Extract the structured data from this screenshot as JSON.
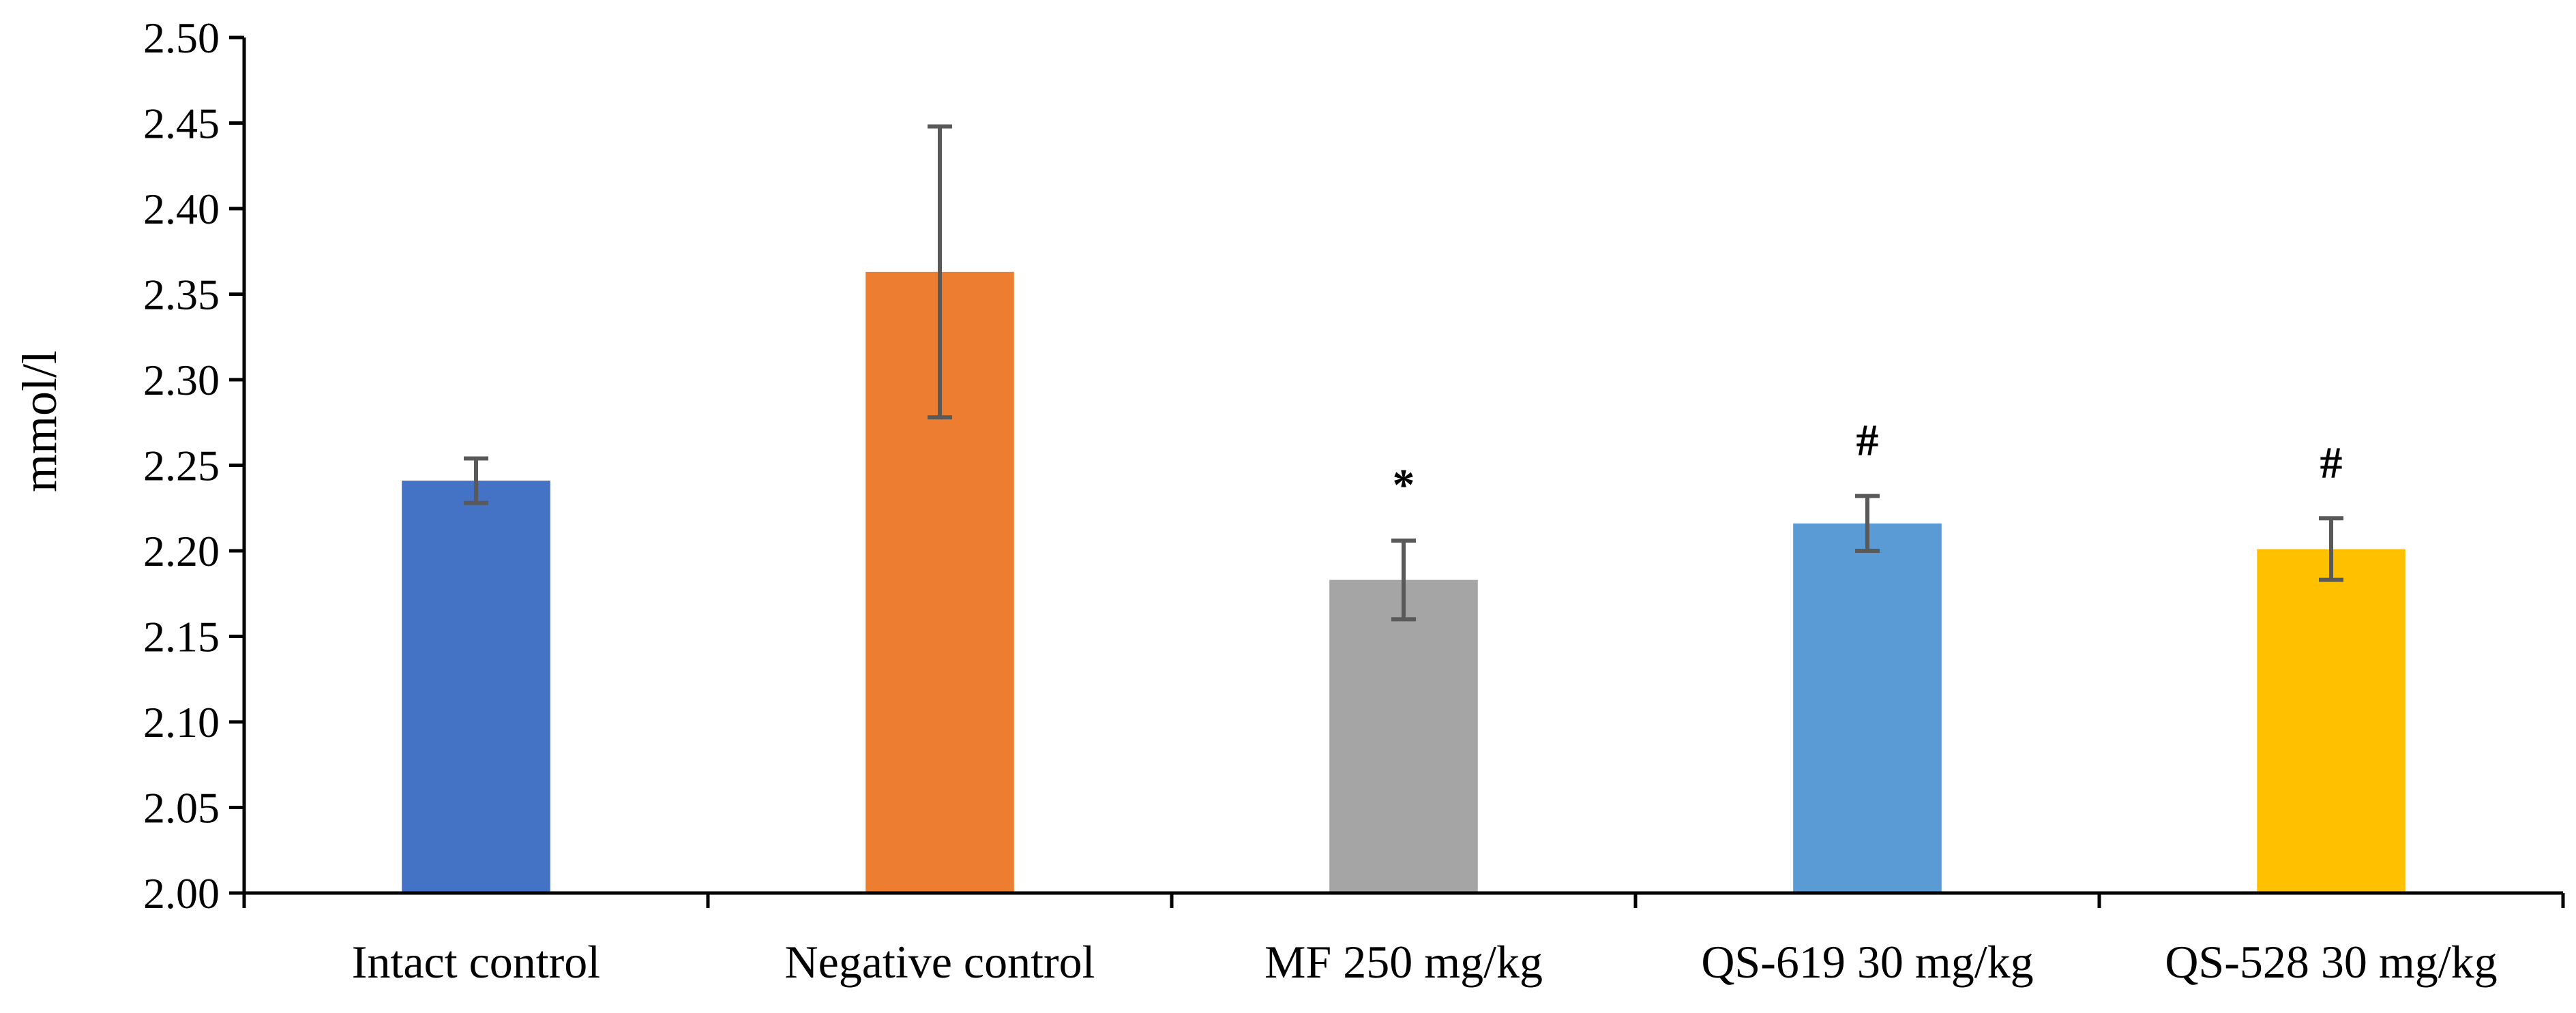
{
  "chart_data": {
    "type": "bar",
    "title": "",
    "xlabel": "",
    "ylabel": "mmol/l",
    "ylim": [
      2.0,
      2.5
    ],
    "yticks": [
      "2.00",
      "2.05",
      "2.10",
      "2.15",
      "2.20",
      "2.25",
      "2.30",
      "2.35",
      "2.40",
      "2.45",
      "2.50"
    ],
    "grid": false,
    "legend": "none",
    "categories": [
      "Intact control",
      "Negative control",
      "MF 250 mg/kg",
      "QS-619 30 mg/kg",
      "QS-528 30 mg/kg"
    ],
    "values": [
      2.241,
      2.363,
      2.183,
      2.216,
      2.201
    ],
    "errors": [
      0.013,
      0.085,
      0.023,
      0.016,
      0.018
    ],
    "colors": [
      "#4472C4",
      "#ED7D31",
      "#A5A5A5",
      "#5B9BD5",
      "#FFC000"
    ],
    "markers": [
      "",
      "",
      "*",
      "#",
      "#"
    ]
  }
}
